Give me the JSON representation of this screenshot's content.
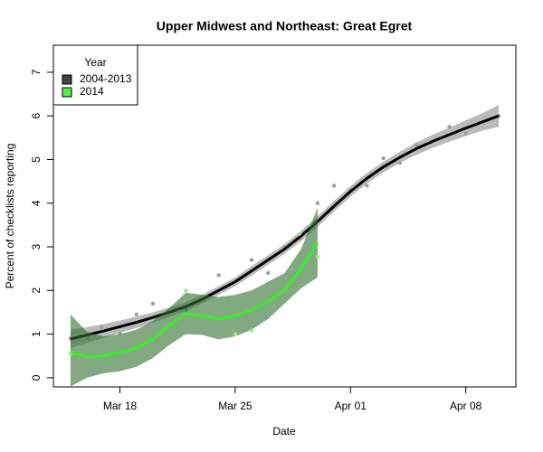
{
  "chart_data": {
    "type": "line",
    "title": "Upper Midwest and Northeast: Great Egret",
    "xlabel": "Date",
    "ylabel": "Percent of checklists reporting",
    "legend_title": "Year",
    "legend": "topleft",
    "xlim": [
      13.96,
      42.04
    ],
    "ylim": [
      -0.21,
      7.62
    ],
    "xticks": [
      {
        "value": 18,
        "label": "Mar 18"
      },
      {
        "value": 25,
        "label": "Mar 25"
      },
      {
        "value": 32,
        "label": "Apr 01"
      },
      {
        "value": 39,
        "label": "Apr 08"
      }
    ],
    "yticks": [
      0,
      1,
      2,
      3,
      4,
      5,
      6,
      7
    ],
    "series": [
      {
        "name": "2004-2013",
        "color": "#000000",
        "legend_fill": "#444444",
        "band_color": "#8c8c8c",
        "point_color": "#a0a0a0",
        "x": [
          15,
          16,
          17,
          18,
          19,
          20,
          21,
          22,
          23,
          24,
          25,
          26,
          27,
          28,
          29,
          30,
          31,
          32,
          33,
          34,
          35,
          36,
          37,
          38,
          39,
          40,
          41
        ],
        "values": [
          0.89,
          0.98,
          1.07,
          1.17,
          1.27,
          1.38,
          1.5,
          1.63,
          1.8,
          2.0,
          2.2,
          2.45,
          2.7,
          2.95,
          3.25,
          3.58,
          3.93,
          4.27,
          4.57,
          4.83,
          5.05,
          5.25,
          5.42,
          5.57,
          5.72,
          5.86,
          6.0
        ],
        "lower": [
          0.68,
          0.8,
          0.91,
          1.03,
          1.14,
          1.26,
          1.39,
          1.53,
          1.7,
          1.9,
          2.1,
          2.34,
          2.59,
          2.84,
          3.13,
          3.46,
          3.81,
          4.15,
          4.45,
          4.71,
          4.92,
          5.11,
          5.27,
          5.41,
          5.54,
          5.66,
          5.75
        ],
        "upper": [
          1.1,
          1.16,
          1.23,
          1.31,
          1.4,
          1.5,
          1.61,
          1.73,
          1.9,
          2.1,
          2.3,
          2.56,
          2.81,
          3.06,
          3.37,
          3.7,
          4.05,
          4.39,
          4.69,
          4.95,
          5.18,
          5.39,
          5.57,
          5.73,
          5.9,
          6.06,
          6.25
        ],
        "points": {
          "x": [
            15,
            16.1,
            16.9,
            18,
            19,
            20,
            21,
            22,
            24,
            26,
            27,
            28,
            29,
            30,
            31,
            32,
            33,
            34,
            35,
            36,
            38,
            39,
            41
          ],
          "y": [
            0.9,
            0.9,
            1.15,
            1.02,
            1.45,
            1.7,
            1.52,
            1.55,
            2.35,
            2.7,
            2.4,
            3.0,
            3.2,
            4.0,
            4.4,
            4.3,
            4.4,
            5.03,
            4.92,
            5.33,
            5.75,
            5.6,
            6.0
          ]
        }
      },
      {
        "name": "2014",
        "color": "#33ee22",
        "legend_fill": "#55ee44",
        "band_color": "#2f6f2f",
        "point_color": "#99ee88",
        "x": [
          15,
          16,
          17,
          18,
          19,
          20,
          21,
          22,
          23,
          24,
          25,
          26,
          27,
          28,
          29,
          30
        ],
        "values": [
          0.6,
          0.48,
          0.5,
          0.58,
          0.68,
          0.88,
          1.2,
          1.47,
          1.42,
          1.35,
          1.42,
          1.55,
          1.75,
          2.0,
          2.5,
          3.1
        ],
        "lower": [
          -0.2,
          0.0,
          0.1,
          0.15,
          0.25,
          0.45,
          0.75,
          1.0,
          0.98,
          0.88,
          0.95,
          1.1,
          1.35,
          1.7,
          2.05,
          2.3
        ],
        "upper": [
          1.45,
          1.05,
          0.95,
          1.0,
          1.1,
          1.3,
          1.6,
          1.95,
          1.9,
          1.85,
          1.9,
          2.0,
          2.2,
          2.4,
          2.95,
          3.9
        ],
        "points": {
          "x": [
            15,
            22,
            25,
            26,
            28.9,
            30
          ],
          "y": [
            0.55,
            2.0,
            1.0,
            1.08,
            3.3,
            2.78
          ]
        }
      }
    ]
  }
}
